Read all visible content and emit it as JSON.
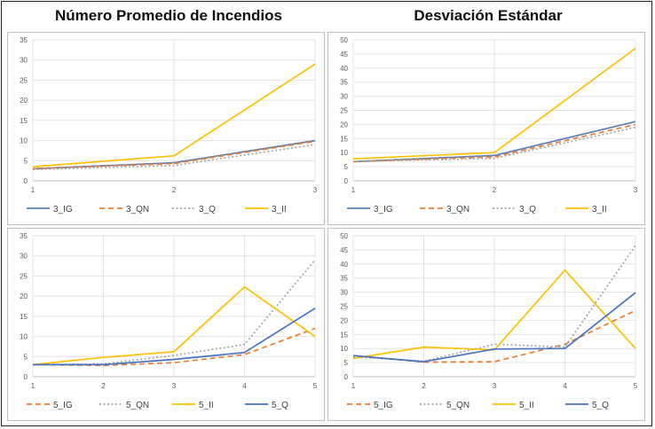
{
  "titles": {
    "left": "Número Promedio de Incendios",
    "right": "Desviación Estándar"
  },
  "chart_data": [
    {
      "type": "line",
      "x": [
        "1",
        "2",
        "3"
      ],
      "ylim": [
        0,
        35
      ],
      "yticks": [
        0,
        5,
        10,
        15,
        20,
        25,
        30,
        35
      ],
      "grid": true,
      "legend": "bottom",
      "series": [
        {
          "name": "3_IG",
          "values": [
            3.0,
            4.5,
            10.0
          ],
          "color": "#5a7fb8",
          "dash": "solid"
        },
        {
          "name": "3_QN",
          "values": [
            3.0,
            4.3,
            9.8
          ],
          "color": "#ed7d31",
          "dash": "dashed"
        },
        {
          "name": "3_Q",
          "values": [
            2.8,
            3.8,
            9.0
          ],
          "color": "#a5a5a5",
          "dash": "dotted"
        },
        {
          "name": "3_II",
          "values": [
            3.5,
            6.2,
            29.0
          ],
          "color": "#ffc000",
          "dash": "solid"
        }
      ]
    },
    {
      "type": "line",
      "x": [
        "1",
        "2",
        "3"
      ],
      "ylim": [
        0,
        50
      ],
      "yticks": [
        0,
        5,
        10,
        15,
        20,
        25,
        30,
        35,
        40,
        45,
        50
      ],
      "grid": true,
      "legend": "bottom",
      "series": [
        {
          "name": "3_IG",
          "values": [
            6.8,
            9.0,
            21.0
          ],
          "color": "#5a7fb8",
          "dash": "solid"
        },
        {
          "name": "3_QN",
          "values": [
            6.8,
            8.5,
            20.0
          ],
          "color": "#ed7d31",
          "dash": "dashed"
        },
        {
          "name": "3_Q",
          "values": [
            6.8,
            8.0,
            19.0
          ],
          "color": "#a5a5a5",
          "dash": "dotted"
        },
        {
          "name": "3_II",
          "values": [
            7.8,
            10.0,
            47.0
          ],
          "color": "#ffc000",
          "dash": "solid"
        }
      ]
    },
    {
      "type": "line",
      "x": [
        "1",
        "2",
        "3",
        "4",
        "5"
      ],
      "ylim": [
        0,
        35
      ],
      "yticks": [
        0,
        5,
        10,
        15,
        20,
        25,
        30,
        35
      ],
      "grid": true,
      "legend": "bottom",
      "series": [
        {
          "name": "5_IG",
          "values": [
            3.0,
            2.8,
            3.5,
            5.5,
            12.0
          ],
          "color": "#ed7d31",
          "dash": "dashed"
        },
        {
          "name": "5_QN",
          "values": [
            3.0,
            3.2,
            5.3,
            8.0,
            29.0
          ],
          "color": "#a5a5a5",
          "dash": "dotted"
        },
        {
          "name": "5_II",
          "values": [
            3.0,
            4.8,
            6.2,
            22.3,
            10.0
          ],
          "color": "#ffc000",
          "dash": "solid"
        },
        {
          "name": "5_Q",
          "values": [
            3.0,
            3.0,
            4.3,
            6.0,
            17.0
          ],
          "color": "#4472c4",
          "dash": "solid"
        }
      ]
    },
    {
      "type": "line",
      "x": [
        "1",
        "2",
        "3",
        "4",
        "5"
      ],
      "ylim": [
        0,
        50
      ],
      "yticks": [
        0,
        5,
        10,
        15,
        20,
        25,
        30,
        35,
        40,
        45,
        50
      ],
      "grid": true,
      "legend": "bottom",
      "series": [
        {
          "name": "5_IG",
          "values": [
            7.5,
            5.2,
            5.3,
            11.5,
            23.5
          ],
          "color": "#ed7d31",
          "dash": "dashed"
        },
        {
          "name": "5_QN",
          "values": [
            7.0,
            5.5,
            11.5,
            10.5,
            46.5
          ],
          "color": "#a5a5a5",
          "dash": "dotted"
        },
        {
          "name": "5_II",
          "values": [
            6.5,
            10.5,
            9.5,
            37.8,
            10.0
          ],
          "color": "#ffc000",
          "dash": "solid"
        },
        {
          "name": "5_Q",
          "values": [
            7.5,
            5.3,
            9.8,
            10.0,
            29.8
          ],
          "color": "#4472c4",
          "dash": "solid"
        }
      ]
    }
  ]
}
